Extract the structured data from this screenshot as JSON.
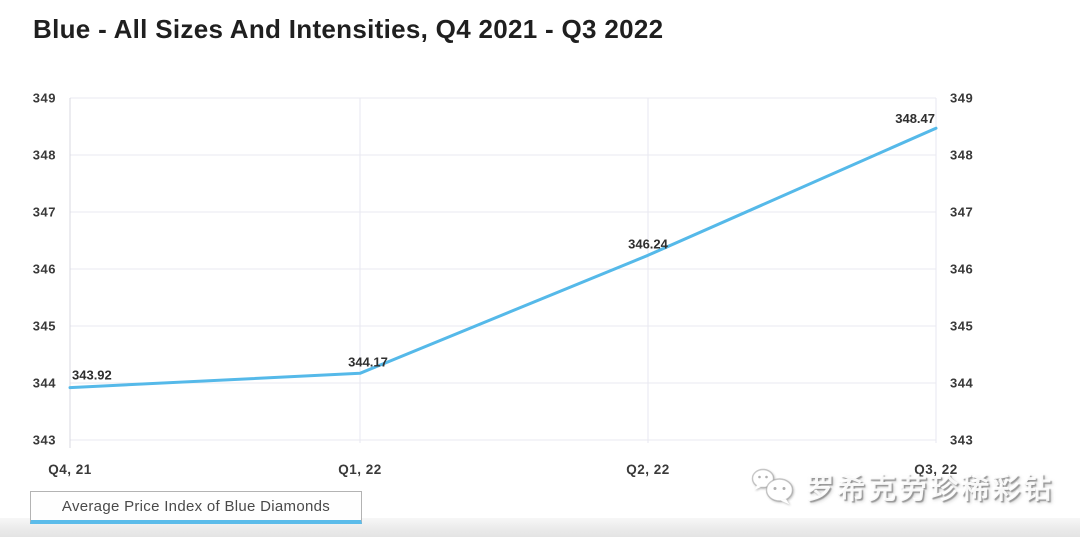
{
  "page": {
    "title": "Blue - All Sizes And Intensities, Q4 2021 - Q3 2022"
  },
  "legend": {
    "label": "Average Price Index of Blue Diamonds"
  },
  "watermark": {
    "icon": "wechat-icon",
    "text": "罗希克劳珍稀彩钻"
  },
  "colors": {
    "line": "#55b9e9",
    "grid_line": "#eaeaf2",
    "vertical_grid_line": "#e7e7f0",
    "axis_line": "#d8d8e0",
    "tick_text": "#3a3a3a",
    "data_label_text": "#2f2f2f",
    "title_text": "#1f1f1f",
    "legend_border": "#b3b3b3",
    "legend_underline": "#5cbcea",
    "legend_text": "#4a4a4a"
  },
  "chart_data": {
    "type": "line",
    "title": "Blue - All Sizes And Intensities, Q4 2021 - Q3 2022",
    "categories": [
      "Q4, 21",
      "Q1, 22",
      "Q2, 22",
      "Q3, 22"
    ],
    "series": [
      {
        "name": "Average Price Index of Blue Diamonds",
        "values": [
          343.92,
          344.17,
          346.24,
          348.47
        ]
      }
    ],
    "data_labels": [
      "343.92",
      "344.17",
      "346.24",
      "348.47"
    ],
    "y_ticks": [
      349,
      348,
      347,
      346,
      345,
      344,
      343
    ],
    "ylim": [
      343,
      349
    ],
    "grid": true,
    "y_axis_sides": "both",
    "legend_position": "bottom-left"
  }
}
